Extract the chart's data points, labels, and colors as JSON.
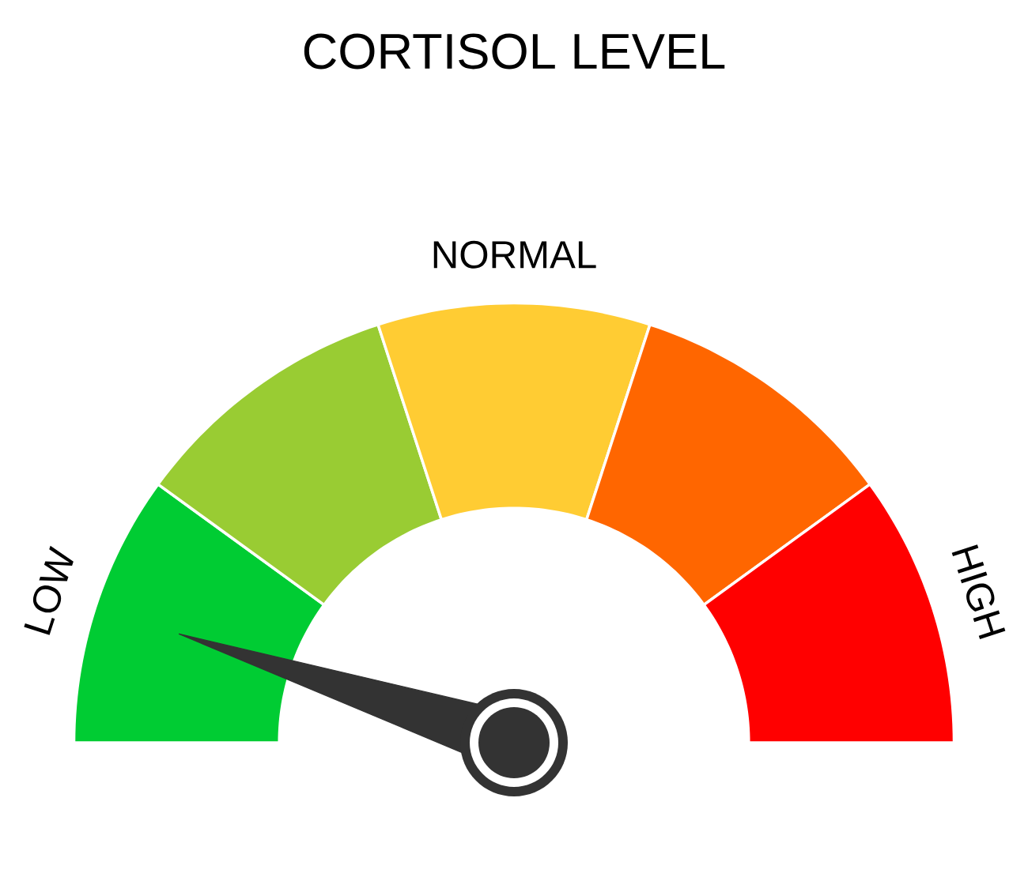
{
  "chart_data": {
    "type": "donut",
    "title": "CORTISOL LEVEL",
    "categories": [
      "LOW",
      null,
      "NORMAL",
      null,
      "HIGH"
    ],
    "values": [
      20,
      20,
      20,
      20,
      20
    ],
    "colors": [
      "#00cc33",
      "#99cc33",
      "#ffcc33",
      "#ff6600",
      "#ff0000"
    ],
    "needle": "LOW"
  }
}
